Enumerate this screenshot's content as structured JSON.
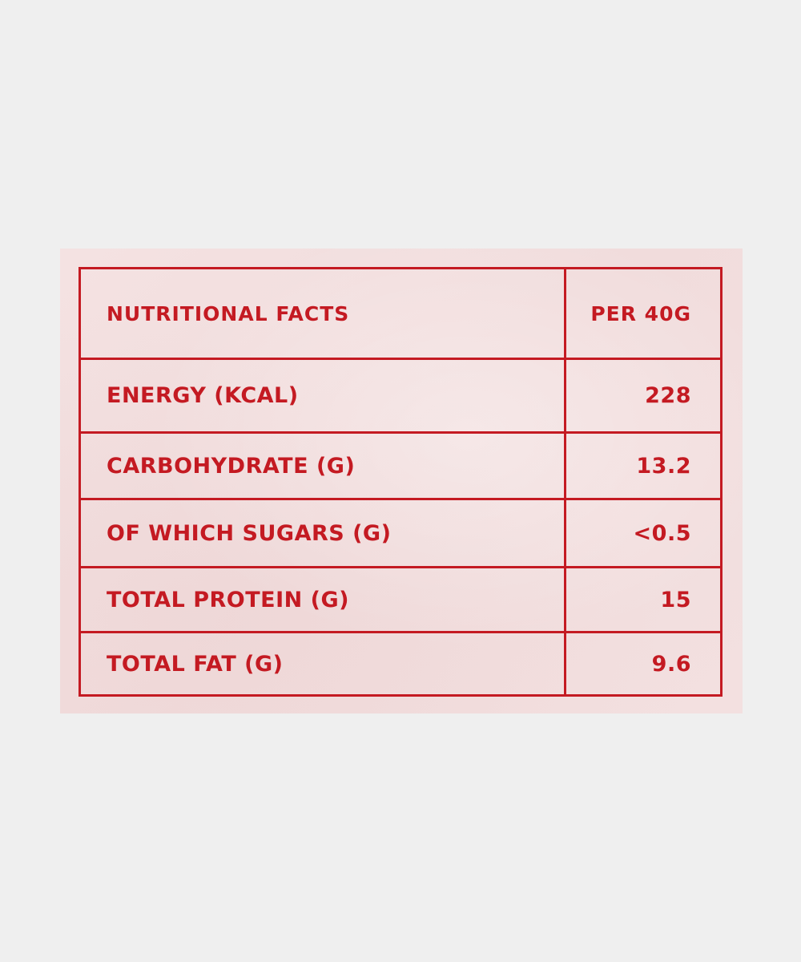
{
  "table": {
    "header": {
      "label": "NUTRITIONAL FACTS",
      "value": "PER 40G"
    },
    "rows": [
      {
        "label": "ENERGY (KCAL)",
        "value": "228"
      },
      {
        "label": "CARBOHYDRATE (G)",
        "value": "13.2"
      },
      {
        "label": "OF WHICH SUGARS (G)",
        "value": "<0.5"
      },
      {
        "label": "TOTAL PROTEIN (G)",
        "value": "15"
      },
      {
        "label": "TOTAL FAT (G)",
        "value": "9.6"
      }
    ]
  },
  "colors": {
    "ink": "#c41a22",
    "card": "#f3dfdf",
    "background": "#efefef"
  }
}
